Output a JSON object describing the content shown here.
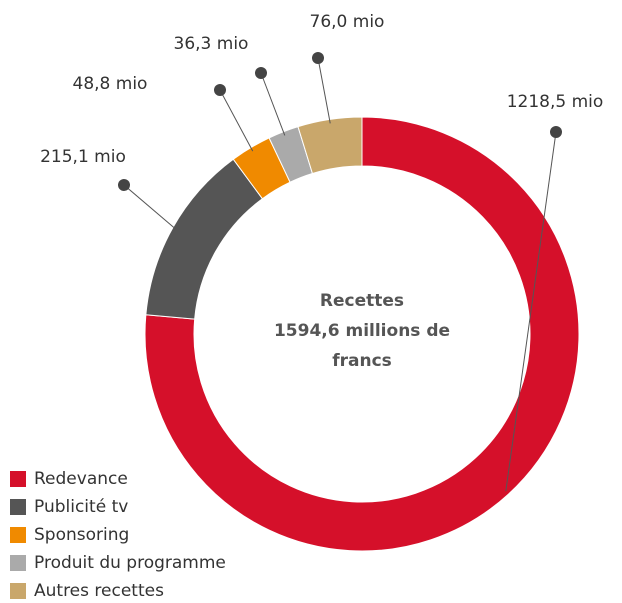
{
  "chart_data": {
    "type": "donut",
    "title": "Recettes",
    "subtitle": "1594,6 millions de francs",
    "categories": [
      "Redevance",
      "Publicité tv",
      "Sponsoring",
      "Produit du programme",
      "Autres recettes"
    ],
    "values": [
      1218.5,
      215.1,
      48.8,
      36.3,
      76.0
    ],
    "value_labels": [
      "1218,5 mio",
      "215,1 mio",
      "48,8 mio",
      "36,3 mio",
      "76,0 mio"
    ],
    "colors": [
      "#d5102a",
      "#555555",
      "#f08a00",
      "#aaaaaa",
      "#c9a76b"
    ],
    "legend": "bottom-left"
  }
}
